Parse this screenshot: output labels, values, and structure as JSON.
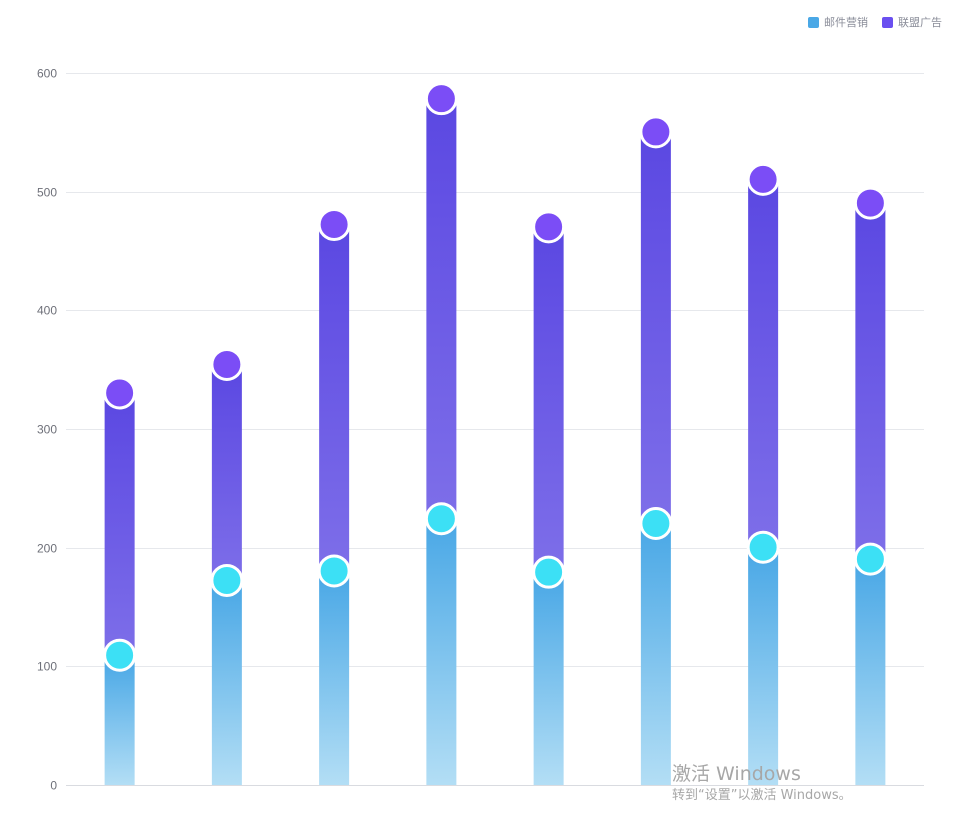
{
  "chart_data": {
    "type": "bar",
    "stacked": true,
    "categories": [
      "",
      "",
      "",
      "",
      "",
      "",
      "",
      ""
    ],
    "series": [
      {
        "name": "邮件营销",
        "values": [
          106,
          169,
          177,
          221,
          176,
          217,
          197,
          187
        ],
        "color": "#3ce0f5",
        "gradient": [
          "#4aa8e6",
          "#b3def5"
        ]
      },
      {
        "name": "联盟广告",
        "values": [
          221,
          182,
          292,
          354,
          291,
          330,
          310,
          300
        ],
        "color": "#7b4df6",
        "gradient": [
          "#5b48e2",
          "#7e6fe9"
        ]
      }
    ],
    "ylim": [
      0,
      600
    ],
    "yticks": [
      0,
      100,
      200,
      300,
      400,
      500,
      600
    ],
    "ytick_labels": [
      "0",
      "100",
      "200",
      "300",
      "400",
      "500",
      "600"
    ],
    "grid": true,
    "legend_position": "top-right",
    "title": "",
    "xlabel": "",
    "ylabel": ""
  },
  "legend": {
    "items": [
      {
        "label": "邮件营销",
        "color": "#4aa8e6"
      },
      {
        "label": "联盟广告",
        "color": "#6a4ff0"
      }
    ]
  },
  "watermark": {
    "title": "激活 Windows",
    "subtitle": "转到“设置”以激活 Windows。"
  }
}
